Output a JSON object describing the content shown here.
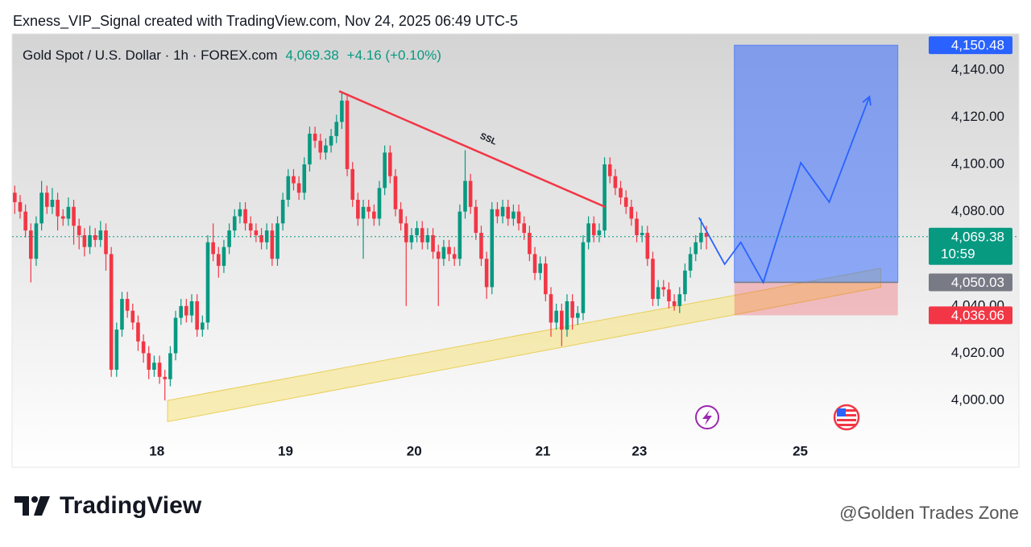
{
  "chart_data": {
    "type": "candlestick",
    "title": "Exness_VIP_Signal created with TradingView.com, Nov 24, 2025 06:49 UTC-5",
    "symbol": "Gold Spot / U.S. Dollar · 1h · FOREX.com",
    "change": "+4.16 (+0.10%)",
    "up_color": "#089981",
    "down_color": "#f23645",
    "xlim": [
      0,
      169
    ],
    "ylim": [
      3971.7,
      4155.3
    ],
    "xticks": [
      {
        "value": 27,
        "label": "18"
      },
      {
        "value": 51,
        "label": "19"
      },
      {
        "value": 75,
        "label": "20"
      },
      {
        "value": 99,
        "label": "21"
      },
      {
        "value": 117,
        "label": "23"
      },
      {
        "value": 147,
        "label": "25"
      }
    ],
    "yticks": [
      {
        "value": 4000,
        "label": "4,000.00"
      },
      {
        "value": 4020,
        "label": "4,020.00"
      },
      {
        "value": 4040,
        "label": "4,040.00"
      },
      {
        "value": 4060,
        "label": "4,060.00"
      },
      {
        "value": 4080,
        "label": "4,080.00"
      },
      {
        "value": 4100,
        "label": "4,100.00"
      },
      {
        "value": 4120,
        "label": "4,120.00"
      },
      {
        "value": 4140,
        "label": "4,140.00"
      }
    ],
    "last_price": {
      "value": 4069.38,
      "label": "4,069.38",
      "countdown": "10:59",
      "color": "#089981"
    },
    "candles": [
      [
        4088,
        4091,
        4079,
        4084
      ],
      [
        4084,
        4087,
        4077,
        4080
      ],
      [
        4080,
        4083,
        4069,
        4072
      ],
      [
        4072,
        4075,
        4050,
        4060
      ],
      [
        4060,
        4078,
        4057,
        4075
      ],
      [
        4075,
        4093,
        4072,
        4088
      ],
      [
        4088,
        4091,
        4079,
        4082
      ],
      [
        4082,
        4090,
        4079,
        4085
      ],
      [
        4085,
        4088,
        4072,
        4078
      ],
      [
        4078,
        4081,
        4074,
        4077
      ],
      [
        4077,
        4086,
        4074,
        4082
      ],
      [
        4082,
        4085,
        4066,
        4074
      ],
      [
        4074,
        4077,
        4064,
        4070
      ],
      [
        4070,
        4073,
        4061,
        4065
      ],
      [
        4065,
        4074,
        4062,
        4070
      ],
      [
        4070,
        4073,
        4065,
        4068
      ],
      [
        4068,
        4076,
        4065,
        4072
      ],
      [
        4072,
        4075,
        4055,
        4062
      ],
      [
        4062,
        4065,
        4010,
        4013
      ],
      [
        4013,
        4033,
        4010,
        4030
      ],
      [
        4030,
        4046,
        4027,
        4043
      ],
      [
        4043,
        4046,
        4035,
        4038
      ],
      [
        4038,
        4041,
        4030,
        4033
      ],
      [
        4033,
        4036,
        4021,
        4025
      ],
      [
        4025,
        4028,
        4016,
        4020
      ],
      [
        4020,
        4023,
        4009,
        4013
      ],
      [
        4013,
        4019,
        4010,
        4016
      ],
      [
        4016,
        4019,
        4007,
        4010
      ],
      [
        4010,
        4013,
        4000,
        4009
      ],
      [
        4009,
        4023,
        4006,
        4020
      ],
      [
        4020,
        4038,
        4017,
        4035
      ],
      [
        4035,
        4043,
        4032,
        4040
      ],
      [
        4040,
        4043,
        4033,
        4036
      ],
      [
        4036,
        4045,
        4033,
        4042
      ],
      [
        4042,
        4045,
        4027,
        4030
      ],
      [
        4030,
        4036,
        4027,
        4033
      ],
      [
        4033,
        4070,
        4030,
        4067
      ],
      [
        4067,
        4075,
        4059,
        4062
      ],
      [
        4062,
        4065,
        4052,
        4057
      ],
      [
        4057,
        4068,
        4054,
        4065
      ],
      [
        4065,
        4075,
        4062,
        4072
      ],
      [
        4072,
        4081,
        4069,
        4078
      ],
      [
        4078,
        4084,
        4075,
        4081
      ],
      [
        4081,
        4084,
        4072,
        4075
      ],
      [
        4075,
        4078,
        4069,
        4072
      ],
      [
        4072,
        4075,
        4067,
        4070
      ],
      [
        4070,
        4073,
        4064,
        4067
      ],
      [
        4067,
        4075,
        4064,
        4072
      ],
      [
        4072,
        4075,
        4057,
        4060
      ],
      [
        4060,
        4078,
        4057,
        4075
      ],
      [
        4075,
        4088,
        4072,
        4085
      ],
      [
        4085,
        4098,
        4082,
        4095
      ],
      [
        4095,
        4098,
        4089,
        4092
      ],
      [
        4092,
        4095,
        4085,
        4088
      ],
      [
        4088,
        4103,
        4085,
        4100
      ],
      [
        4100,
        4116,
        4097,
        4113
      ],
      [
        4113,
        4116,
        4107,
        4110
      ],
      [
        4110,
        4113,
        4102,
        4105
      ],
      [
        4105,
        4111,
        4102,
        4108
      ],
      [
        4108,
        4115,
        4105,
        4112
      ],
      [
        4112,
        4121,
        4109,
        4118
      ],
      [
        4118,
        4131,
        4115,
        4127
      ],
      [
        4127,
        4130,
        4095,
        4098
      ],
      [
        4098,
        4101,
        4082,
        4085
      ],
      [
        4085,
        4088,
        4074,
        4077
      ],
      [
        4077,
        4085,
        4060,
        4082
      ],
      [
        4082,
        4085,
        4077,
        4080
      ],
      [
        4080,
        4083,
        4074,
        4077
      ],
      [
        4077,
        4093,
        4074,
        4090
      ],
      [
        4090,
        4108,
        4087,
        4105
      ],
      [
        4105,
        4108,
        4092,
        4095
      ],
      [
        4095,
        4098,
        4078,
        4081
      ],
      [
        4081,
        4084,
        4072,
        4075
      ],
      [
        4075,
        4078,
        4040,
        4067
      ],
      [
        4067,
        4073,
        4064,
        4070
      ],
      [
        4070,
        4076,
        4067,
        4073
      ],
      [
        4073,
        4076,
        4064,
        4067
      ],
      [
        4067,
        4073,
        4064,
        4070
      ],
      [
        4070,
        4073,
        4060,
        4063
      ],
      [
        4063,
        4066,
        4040,
        4060
      ],
      [
        4060,
        4068,
        4057,
        4065
      ],
      [
        4065,
        4068,
        4059,
        4062
      ],
      [
        4062,
        4065,
        4057,
        4060
      ],
      [
        4060,
        4083,
        4057,
        4080
      ],
      [
        4080,
        4106,
        4077,
        4093
      ],
      [
        4093,
        4096,
        4079,
        4082
      ],
      [
        4082,
        4085,
        4068,
        4071
      ],
      [
        4071,
        4074,
        4057,
        4060
      ],
      [
        4060,
        4063,
        4043,
        4048
      ],
      [
        4048,
        4084,
        4045,
        4081
      ],
      [
        4081,
        4084,
        4075,
        4078
      ],
      [
        4078,
        4085,
        4075,
        4082
      ],
      [
        4082,
        4085,
        4074,
        4077
      ],
      [
        4077,
        4083,
        4074,
        4080
      ],
      [
        4080,
        4083,
        4072,
        4075
      ],
      [
        4075,
        4078,
        4068,
        4071
      ],
      [
        4071,
        4074,
        4059,
        4062
      ],
      [
        4062,
        4065,
        4051,
        4054
      ],
      [
        4054,
        4061,
        4051,
        4058
      ],
      [
        4058,
        4061,
        4042,
        4045
      ],
      [
        4045,
        4048,
        4027,
        4033
      ],
      [
        4033,
        4041,
        4030,
        4038
      ],
      [
        4038,
        4041,
        4023,
        4030
      ],
      [
        4030,
        4045,
        4027,
        4042
      ],
      [
        4042,
        4045,
        4030,
        4035
      ],
      [
        4035,
        4040,
        4032,
        4037
      ],
      [
        4037,
        4070,
        4034,
        4067
      ],
      [
        4067,
        4078,
        4064,
        4075
      ],
      [
        4075,
        4078,
        4067,
        4070
      ],
      [
        4070,
        4075,
        4067,
        4072
      ],
      [
        4072,
        4103,
        4069,
        4100
      ],
      [
        4100,
        4103,
        4092,
        4095
      ],
      [
        4095,
        4098,
        4087,
        4090
      ],
      [
        4090,
        4093,
        4083,
        4086
      ],
      [
        4086,
        4089,
        4079,
        4082
      ],
      [
        4082,
        4085,
        4074,
        4077
      ],
      [
        4077,
        4080,
        4067,
        4070
      ],
      [
        4070,
        4074,
        4067,
        4071
      ],
      [
        4071,
        4074,
        4057,
        4060
      ],
      [
        4060,
        4063,
        4040,
        4043
      ],
      [
        4043,
        4051,
        4040,
        4048
      ],
      [
        4048,
        4051,
        4044,
        4047
      ],
      [
        4047,
        4050,
        4039,
        4042
      ],
      [
        4042,
        4045,
        4038,
        4040
      ],
      [
        4040,
        4048,
        4037,
        4045
      ],
      [
        4045,
        4058,
        4042,
        4055
      ],
      [
        4055,
        4065,
        4052,
        4062
      ],
      [
        4062,
        4070,
        4059,
        4067
      ],
      [
        4067,
        4077,
        4064,
        4071
      ],
      [
        4071,
        4074,
        4064,
        4069.38
      ]
    ],
    "trendline": {
      "label": "SSL",
      "color": "#f23645",
      "x": [
        61,
        110.6
      ],
      "y": [
        4131,
        4082
      ]
    },
    "channel": {
      "color": "#f5e27a",
      "x": [
        29,
        162
      ],
      "upper": [
        4000,
        4056
      ],
      "lower": [
        3991,
        4048
      ]
    },
    "position": {
      "x": [
        134.7,
        165.2
      ],
      "target": {
        "value": 4150.48,
        "label": "4,150.48",
        "color": "#2962ff"
      },
      "entry": {
        "value": 4050.03,
        "label": "4,050.03",
        "color": "#787b86"
      },
      "stop": {
        "value": 4036.06,
        "label": "4,036.06",
        "color": "#f23645"
      }
    },
    "projection": {
      "color": "#2962ff",
      "x": [
        128.1,
        132.9,
        135.9,
        140.1,
        147.1,
        152.4,
        159.9
      ],
      "y": [
        4077.5,
        4057.7,
        4067,
        4050,
        4100.7,
        4084,
        4128.7
      ]
    }
  },
  "footer": {
    "brand": "TradingView",
    "watermark": "@Golden Trades Zone"
  }
}
